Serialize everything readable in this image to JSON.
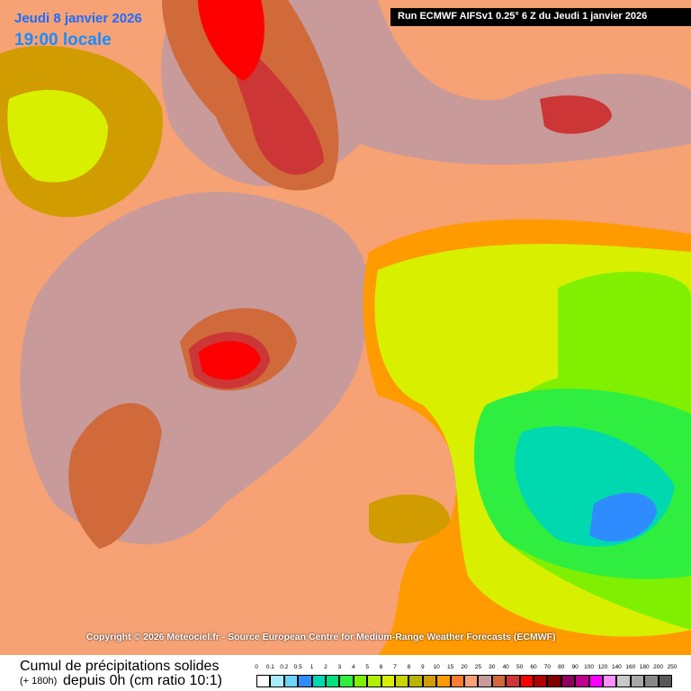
{
  "header": {
    "date": "Jeudi 8 janvier 2026",
    "time": "19:00 locale",
    "run": "Run ECMWF AIFSv1 0.25° 6 Z du Jeudi 1 janvier 2026"
  },
  "copyright": "Copyright © 2026 Meteociel.fr - Source European Centre for Medium-Range Weather Forecasts (ECMWF)",
  "caption": {
    "title": "Cumul de précipitations solides",
    "lead": "(+ 180h)",
    "subtitle": "depuis 0h (cm ratio 10:1)"
  },
  "legend": {
    "labels": [
      "0",
      "0.1",
      "0.2",
      "0.5",
      "1",
      "2",
      "3",
      "4",
      "5",
      "6",
      "7",
      "8",
      "9",
      "10",
      "15",
      "20",
      "25",
      "30",
      "40",
      "50",
      "60",
      "70",
      "80",
      "90",
      "100",
      "120",
      "140",
      "160",
      "180",
      "200",
      "250"
    ],
    "colors": [
      "#ffffff",
      "#a8ecff",
      "#6cd4ff",
      "#2f8cff",
      "#00d8b0",
      "#00e080",
      "#30ee40",
      "#80f000",
      "#b0f000",
      "#d8f000",
      "#c8d400",
      "#b8b400",
      "#d09c00",
      "#ff9a00",
      "#ff7c30",
      "#f8a078",
      "#c89a9a",
      "#d06a3a",
      "#cc3636",
      "#ff0000",
      "#b00000",
      "#800000",
      "#900060",
      "#c0008c",
      "#ff00ff",
      "#ff90ff",
      "#c8c8c8",
      "#a8a8a8",
      "#888888",
      "#585858"
    ]
  }
}
